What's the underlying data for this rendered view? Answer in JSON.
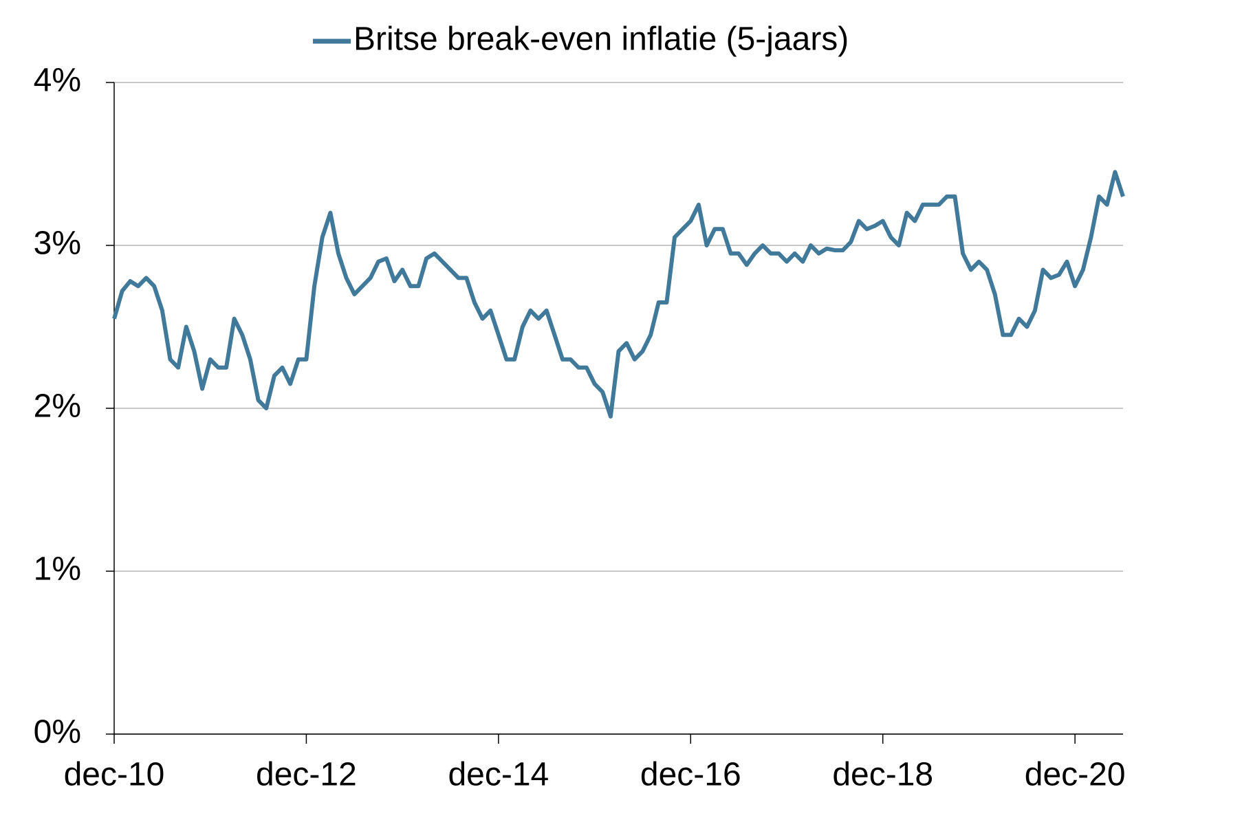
{
  "chart_data": {
    "type": "line",
    "categories": [
      "dec-10",
      null,
      null,
      null,
      null,
      null,
      null,
      null,
      null,
      null,
      null,
      null,
      null,
      null,
      null,
      null,
      null,
      null,
      null,
      null,
      null,
      null,
      null,
      null,
      "dec-12",
      null,
      null,
      null,
      null,
      null,
      null,
      null,
      null,
      null,
      null,
      null,
      null,
      null,
      null,
      null,
      null,
      null,
      null,
      null,
      null,
      null,
      null,
      null,
      "dec-14",
      null,
      null,
      null,
      null,
      null,
      null,
      null,
      null,
      null,
      null,
      null,
      null,
      null,
      null,
      null,
      null,
      null,
      null,
      null,
      null,
      null,
      null,
      null,
      "dec-16",
      null,
      null,
      null,
      null,
      null,
      null,
      null,
      null,
      null,
      null,
      null,
      null,
      null,
      null,
      null,
      null,
      null,
      null,
      null,
      null,
      null,
      null,
      null,
      "dec-18",
      null,
      null,
      null,
      null,
      null,
      null,
      null,
      null,
      null,
      null,
      null,
      null,
      null,
      null,
      null,
      null,
      null,
      null,
      null,
      null,
      null,
      null,
      null,
      "dec-20",
      null,
      null,
      null,
      null,
      null,
      null
    ],
    "series": [
      {
        "name": "Britse break-even inflatie (5-jaars)",
        "color": "#41799b",
        "values": [
          2.55,
          2.72,
          2.78,
          2.75,
          2.8,
          2.75,
          2.6,
          2.3,
          2.25,
          2.5,
          2.35,
          2.12,
          2.3,
          2.25,
          2.25,
          2.55,
          2.45,
          2.3,
          2.05,
          2.0,
          2.2,
          2.25,
          2.15,
          2.3,
          2.3,
          2.75,
          3.05,
          3.2,
          2.95,
          2.8,
          2.7,
          2.75,
          2.8,
          2.9,
          2.92,
          2.78,
          2.85,
          2.75,
          2.75,
          2.92,
          2.95,
          2.9,
          2.85,
          2.8,
          2.8,
          2.65,
          2.55,
          2.6,
          2.45,
          2.3,
          2.3,
          2.5,
          2.6,
          2.55,
          2.6,
          2.45,
          2.3,
          2.3,
          2.25,
          2.25,
          2.15,
          2.1,
          1.95,
          2.35,
          2.4,
          2.3,
          2.35,
          2.45,
          2.65,
          2.65,
          3.05,
          3.1,
          3.15,
          3.25,
          3.0,
          3.1,
          3.1,
          2.95,
          2.95,
          2.88,
          2.95,
          3.0,
          2.95,
          2.95,
          2.9,
          2.95,
          2.9,
          3.0,
          2.95,
          2.98,
          2.97,
          2.97,
          3.02,
          3.15,
          3.1,
          3.12,
          3.15,
          3.05,
          3.0,
          3.2,
          3.15,
          3.25,
          3.25,
          3.25,
          3.3,
          3.3,
          2.95,
          2.85,
          2.9,
          2.85,
          2.7,
          2.45,
          2.45,
          2.55,
          2.5,
          2.6,
          2.85,
          2.8,
          2.82,
          2.9,
          2.75,
          2.85,
          3.05,
          3.3,
          3.25,
          3.45,
          3.3
        ]
      }
    ],
    "ylim": [
      0,
      4
    ],
    "yticks": [
      {
        "value": 0,
        "label": "0%"
      },
      {
        "value": 1,
        "label": "1%"
      },
      {
        "value": 2,
        "label": "2%"
      },
      {
        "value": 3,
        "label": "3%"
      },
      {
        "value": 4,
        "label": "4%"
      }
    ],
    "grid": true,
    "legend": "top"
  }
}
